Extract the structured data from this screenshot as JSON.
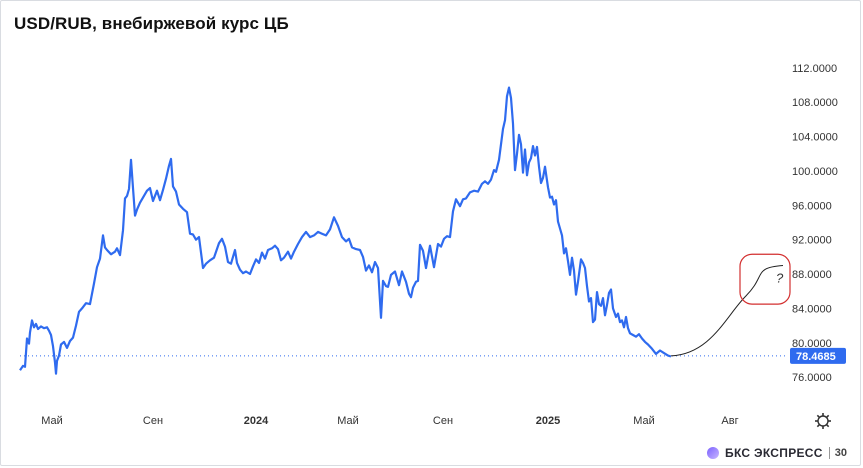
{
  "title": "USD/RUB, внебиржевой курс ЦБ",
  "brand": {
    "name": "БКС ЭКСПРЕСС",
    "badge": "30"
  },
  "icons": {
    "settings": "gear-icon"
  },
  "colors": {
    "line": "#2f6bef",
    "price_label_bg": "#2f6bef",
    "forecast": "#222222",
    "annotation": "#d32f2f"
  },
  "chart_data": {
    "type": "line",
    "title": "USD/RUB, внебиржевой курс ЦБ",
    "ylim": [
      74.5,
      113.5
    ],
    "yticks": [
      "112.0000",
      "108.0000",
      "104.0000",
      "100.0000",
      "96.0000",
      "92.0000",
      "88.0000",
      "84.0000",
      "80.0000",
      "76.0000"
    ],
    "xticks": [
      "Май",
      "Сен",
      "2024",
      "Май",
      "Сен",
      "2025",
      "Май",
      "Авг"
    ],
    "last_value_label": "78.4685",
    "last_value": 78.4685,
    "annotation": "?",
    "series": [
      {
        "values": [
          [
            0,
            76.8
          ],
          [
            3,
            77.3
          ],
          [
            5,
            77.2
          ],
          [
            7,
            80.5
          ],
          [
            9,
            79.9
          ],
          [
            10,
            81.2
          ],
          [
            12,
            82.6
          ],
          [
            14,
            81.8
          ],
          [
            16,
            82.2
          ],
          [
            18,
            81.6
          ],
          [
            21,
            81.9
          ],
          [
            24,
            81.7
          ],
          [
            27,
            81.8
          ],
          [
            29,
            81.4
          ],
          [
            31,
            80.9
          ],
          [
            33,
            79.6
          ],
          [
            35,
            77.7
          ],
          [
            36,
            76.4
          ],
          [
            37,
            77.9
          ],
          [
            39,
            78.5
          ],
          [
            41,
            79.8
          ],
          [
            44,
            80.1
          ],
          [
            47,
            79.4
          ],
          [
            50,
            80.2
          ],
          [
            53,
            80.6
          ],
          [
            56,
            82.0
          ],
          [
            59,
            83.6
          ],
          [
            62,
            84.0
          ],
          [
            66,
            84.6
          ],
          [
            70,
            84.5
          ],
          [
            74,
            86.9
          ],
          [
            77,
            88.8
          ],
          [
            80,
            89.8
          ],
          [
            83,
            92.5
          ],
          [
            85,
            91.1
          ],
          [
            87,
            90.8
          ],
          [
            91,
            90.3
          ],
          [
            95,
            90.6
          ],
          [
            97,
            91.0
          ],
          [
            100,
            90.2
          ],
          [
            103,
            93.1
          ],
          [
            105,
            96.8
          ],
          [
            107,
            97.1
          ],
          [
            109,
            97.9
          ],
          [
            111,
            101.3
          ],
          [
            113,
            98.0
          ],
          [
            115,
            94.8
          ],
          [
            117,
            95.5
          ],
          [
            120,
            96.3
          ],
          [
            123,
            96.9
          ],
          [
            127,
            97.7
          ],
          [
            130,
            98.0
          ],
          [
            133,
            96.5
          ],
          [
            137,
            97.7
          ],
          [
            140,
            96.6
          ],
          [
            143,
            97.8
          ],
          [
            146,
            99.1
          ],
          [
            149,
            100.6
          ],
          [
            151,
            101.4
          ],
          [
            153,
            98.2
          ],
          [
            156,
            97.6
          ],
          [
            159,
            96.1
          ],
          [
            163,
            95.6
          ],
          [
            167,
            95.2
          ],
          [
            170,
            92.7
          ],
          [
            173,
            92.6
          ],
          [
            176,
            92.0
          ],
          [
            179,
            92.3
          ],
          [
            183,
            88.7
          ],
          [
            186,
            89.2
          ],
          [
            190,
            89.6
          ],
          [
            194,
            89.9
          ],
          [
            199,
            91.6
          ],
          [
            202,
            92.1
          ],
          [
            205,
            91.2
          ],
          [
            208,
            89.4
          ],
          [
            211,
            89.2
          ],
          [
            215,
            90.8
          ],
          [
            217,
            89.3
          ],
          [
            220,
            88.5
          ],
          [
            223,
            88.1
          ],
          [
            226,
            88.3
          ],
          [
            230,
            88.0
          ],
          [
            233,
            88.9
          ],
          [
            236,
            89.7
          ],
          [
            239,
            89.3
          ],
          [
            242,
            90.5
          ],
          [
            245,
            89.8
          ],
          [
            248,
            90.8
          ],
          [
            252,
            91.0
          ],
          [
            255,
            91.3
          ],
          [
            258,
            90.9
          ],
          [
            261,
            89.6
          ],
          [
            264,
            89.9
          ],
          [
            268,
            90.6
          ],
          [
            271,
            89.8
          ],
          [
            274,
            90.6
          ],
          [
            278,
            91.5
          ],
          [
            282,
            92.3
          ],
          [
            286,
            92.9
          ],
          [
            290,
            92.3
          ],
          [
            294,
            92.5
          ],
          [
            298,
            92.9
          ],
          [
            302,
            92.7
          ],
          [
            306,
            92.5
          ],
          [
            310,
            93.2
          ],
          [
            314,
            94.6
          ],
          [
            318,
            93.6
          ],
          [
            322,
            92.3
          ],
          [
            326,
            91.8
          ],
          [
            329,
            92.1
          ],
          [
            332,
            91.1
          ],
          [
            336,
            90.9
          ],
          [
            340,
            90.8
          ],
          [
            343,
            90.0
          ],
          [
            346,
            88.4
          ],
          [
            349,
            89.0
          ],
          [
            352,
            88.2
          ],
          [
            355,
            89.4
          ],
          [
            358,
            88.7
          ],
          [
            361,
            82.9
          ],
          [
            363,
            87.2
          ],
          [
            366,
            86.6
          ],
          [
            368,
            86.5
          ],
          [
            371,
            87.9
          ],
          [
            375,
            88.3
          ],
          [
            379,
            86.7
          ],
          [
            382,
            88.3
          ],
          [
            386,
            87.1
          ],
          [
            389,
            85.7
          ],
          [
            391,
            85.3
          ],
          [
            393,
            86.4
          ],
          [
            396,
            87.1
          ],
          [
            398,
            87.2
          ],
          [
            400,
            91.4
          ],
          [
            403,
            90.7
          ],
          [
            406,
            88.7
          ],
          [
            410,
            91.3
          ],
          [
            414,
            88.8
          ],
          [
            418,
            91.5
          ],
          [
            421,
            91.2
          ],
          [
            424,
            92.1
          ],
          [
            427,
            92.4
          ],
          [
            430,
            92.3
          ],
          [
            433,
            95.3
          ],
          [
            436,
            96.7
          ],
          [
            440,
            95.9
          ],
          [
            443,
            96.7
          ],
          [
            446,
            96.8
          ],
          [
            450,
            97.5
          ],
          [
            454,
            97.7
          ],
          [
            458,
            97.6
          ],
          [
            462,
            98.5
          ],
          [
            465,
            98.8
          ],
          [
            468,
            98.5
          ],
          [
            471,
            99.0
          ],
          [
            474,
            100.1
          ],
          [
            476,
            99.9
          ],
          [
            479,
            101.3
          ],
          [
            481,
            103.1
          ],
          [
            483,
            104.9
          ],
          [
            485,
            105.9
          ],
          [
            487,
            108.7
          ],
          [
            489,
            109.7
          ],
          [
            491,
            108.5
          ],
          [
            493,
            105.5
          ],
          [
            495,
            100.1
          ],
          [
            497,
            102.0
          ],
          [
            499,
            104.2
          ],
          [
            501,
            103.1
          ],
          [
            503,
            99.8
          ],
          [
            505,
            102.5
          ],
          [
            507,
            99.5
          ],
          [
            509,
            101.0
          ],
          [
            511,
            101.5
          ],
          [
            513,
            102.9
          ],
          [
            515,
            101.8
          ],
          [
            517,
            102.8
          ],
          [
            519,
            100.5
          ],
          [
            521,
            98.6
          ],
          [
            523,
            99.2
          ],
          [
            525,
            100.5
          ],
          [
            528,
            98.1
          ],
          [
            530,
            96.9
          ],
          [
            532,
            97.0
          ],
          [
            534,
            96.1
          ],
          [
            536,
            96.6
          ],
          [
            538,
            94.1
          ],
          [
            540,
            93.3
          ],
          [
            542,
            92.5
          ],
          [
            544,
            90.4
          ],
          [
            546,
            91.0
          ],
          [
            548,
            89.5
          ],
          [
            550,
            87.9
          ],
          [
            552,
            89.9
          ],
          [
            554,
            88.4
          ],
          [
            556,
            85.6
          ],
          [
            558,
            87.1
          ],
          [
            561,
            89.7
          ],
          [
            563,
            89.3
          ],
          [
            565,
            88.7
          ],
          [
            567,
            86.6
          ],
          [
            569,
            84.8
          ],
          [
            571,
            85.2
          ],
          [
            573,
            82.4
          ],
          [
            575,
            82.7
          ],
          [
            577,
            85.9
          ],
          [
            579,
            84.5
          ],
          [
            581,
            84.3
          ],
          [
            583,
            85.2
          ],
          [
            585,
            83.2
          ],
          [
            587,
            84.4
          ],
          [
            589,
            85.8
          ],
          [
            591,
            86.2
          ],
          [
            593,
            84.0
          ],
          [
            596,
            83.0
          ],
          [
            598,
            83.4
          ],
          [
            600,
            82.4
          ],
          [
            602,
            82.6
          ],
          [
            604,
            81.8
          ],
          [
            606,
            83.0
          ],
          [
            608,
            81.7
          ],
          [
            610,
            81.1
          ],
          [
            613,
            80.9
          ],
          [
            616,
            80.7
          ],
          [
            619,
            81.0
          ],
          [
            622,
            80.5
          ],
          [
            625,
            80.1
          ],
          [
            628,
            79.8
          ],
          [
            632,
            79.3
          ],
          [
            636,
            78.7
          ],
          [
            640,
            79.1
          ],
          [
            644,
            78.8
          ],
          [
            648,
            78.5
          ],
          [
            651,
            78.4
          ]
        ]
      }
    ],
    "forecast": {
      "from": 78.47,
      "to": 89.0
    }
  }
}
